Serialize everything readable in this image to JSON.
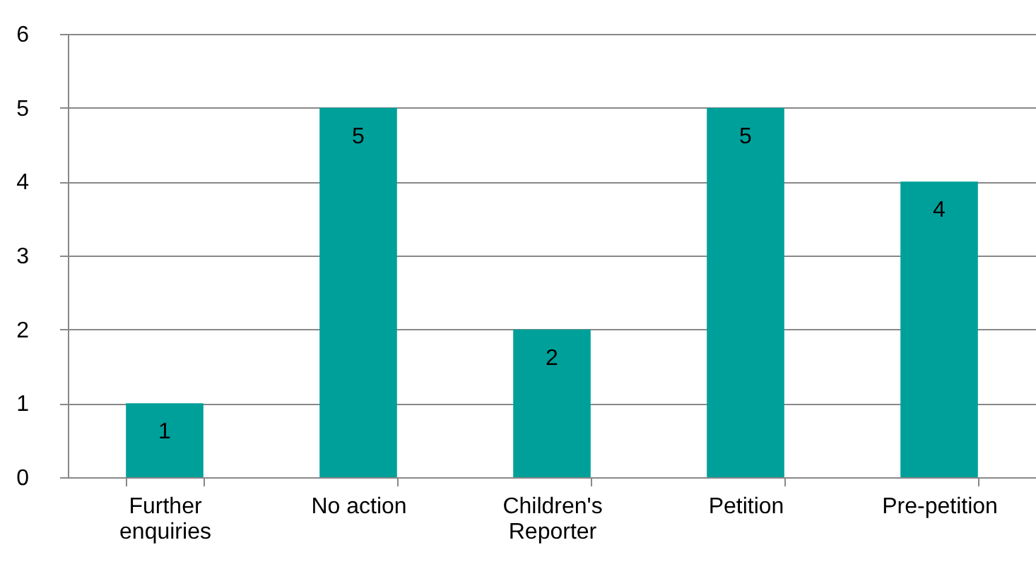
{
  "chart_data": {
    "type": "bar",
    "categories": [
      "Further enquiries",
      "No action",
      "Children's Reporter",
      "Petition",
      "Pre-petition"
    ],
    "values": [
      1,
      5,
      2,
      5,
      4
    ],
    "color": "#00a09a",
    "ylim": [
      0,
      6
    ],
    "yticks": [
      0,
      1,
      2,
      3,
      4,
      5,
      6
    ],
    "grid": "y",
    "data_labels": true
  }
}
